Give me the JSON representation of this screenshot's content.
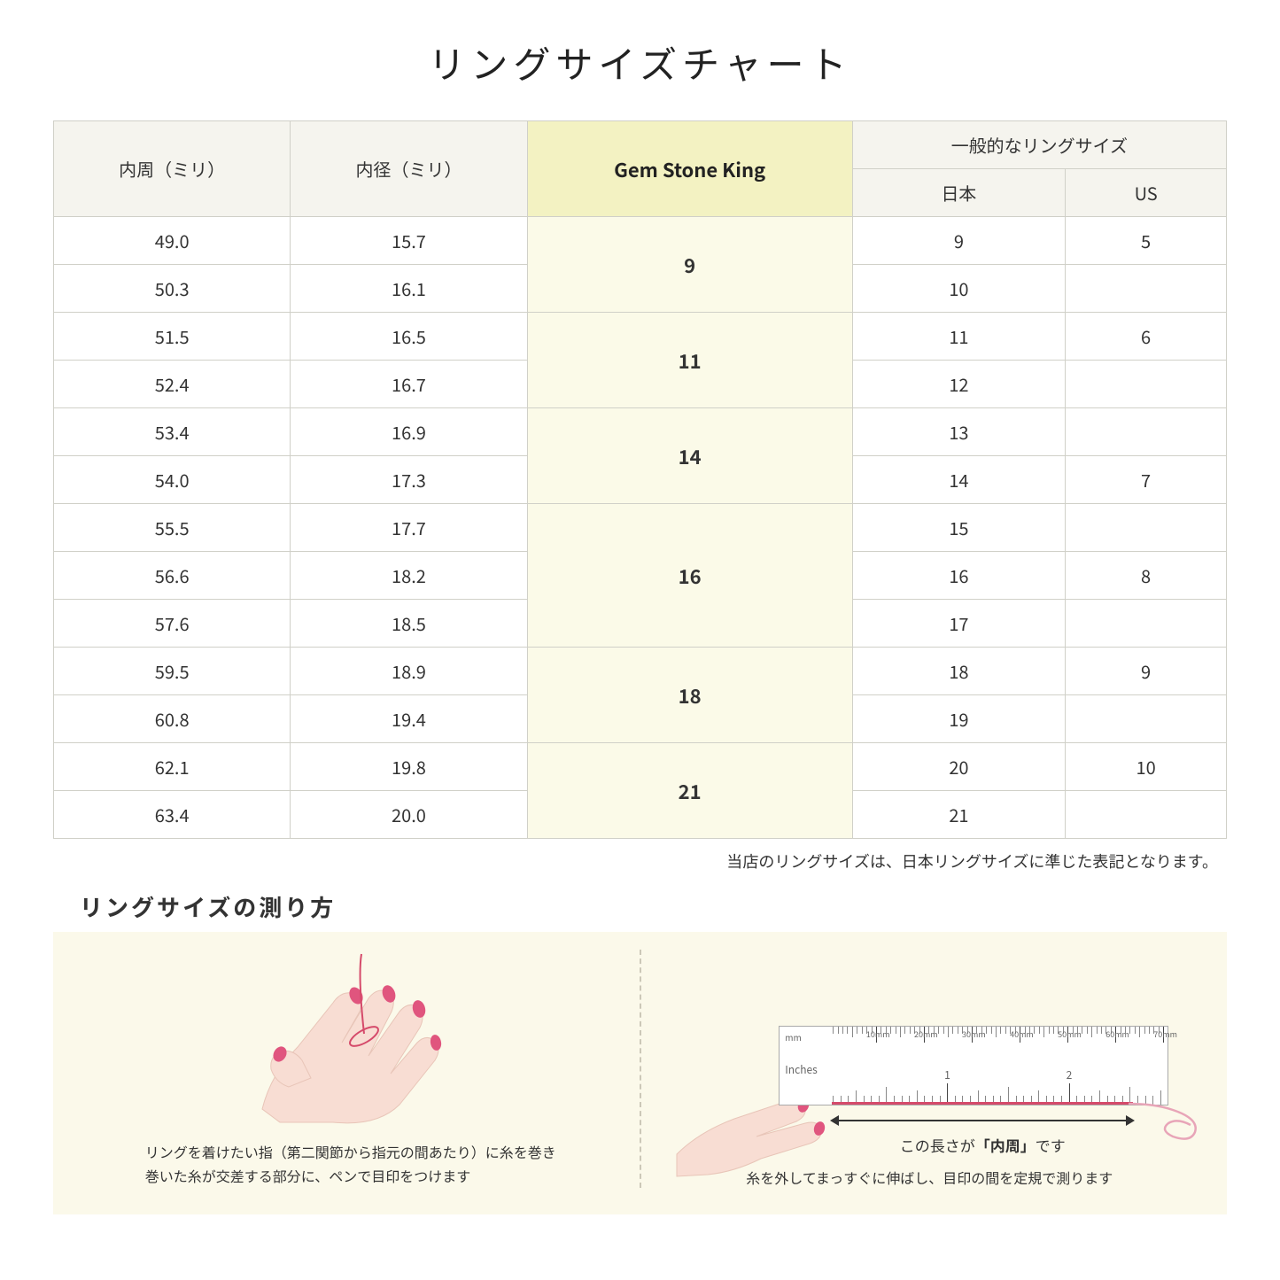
{
  "title": "リングサイズチャート",
  "headers": {
    "circumference": "内周（ミリ）",
    "diameter": "内径（ミリ）",
    "gsk": "Gem Stone King",
    "general": "一般的なリングサイズ",
    "japan": "日本",
    "us": "US"
  },
  "groups": [
    {
      "gsk": "9",
      "rows": [
        {
          "c": "49.0",
          "d": "15.7",
          "jp": "9",
          "us": "5"
        },
        {
          "c": "50.3",
          "d": "16.1",
          "jp": "10",
          "us": ""
        }
      ]
    },
    {
      "gsk": "11",
      "rows": [
        {
          "c": "51.5",
          "d": "16.5",
          "jp": "11",
          "us": "6"
        },
        {
          "c": "52.4",
          "d": "16.7",
          "jp": "12",
          "us": ""
        }
      ]
    },
    {
      "gsk": "14",
      "rows": [
        {
          "c": "53.4",
          "d": "16.9",
          "jp": "13",
          "us": ""
        },
        {
          "c": "54.0",
          "d": "17.3",
          "jp": "14",
          "us": "7"
        }
      ]
    },
    {
      "gsk": "16",
      "rows": [
        {
          "c": "55.5",
          "d": "17.7",
          "jp": "15",
          "us": ""
        },
        {
          "c": "56.6",
          "d": "18.2",
          "jp": "16",
          "us": "8"
        },
        {
          "c": "57.6",
          "d": "18.5",
          "jp": "17",
          "us": ""
        }
      ]
    },
    {
      "gsk": "18",
      "rows": [
        {
          "c": "59.5",
          "d": "18.9",
          "jp": "18",
          "us": "9"
        },
        {
          "c": "60.8",
          "d": "19.4",
          "jp": "19",
          "us": ""
        }
      ]
    },
    {
      "gsk": "21",
      "rows": [
        {
          "c": "62.1",
          "d": "19.8",
          "jp": "20",
          "us": "10"
        },
        {
          "c": "63.4",
          "d": "20.0",
          "jp": "21",
          "us": ""
        }
      ]
    }
  ],
  "note": "当店のリングサイズは、日本リングサイズに準じた表記となります。",
  "howto": {
    "title": "リングサイズの測り方",
    "step1": "リングを着けたい指（第二関節から指元の間あたり）に糸を巻き\n巻いた糸が交差する部分に、ペンで目印をつけます",
    "ruler_mm_label": "mm",
    "ruler_mm_ticks": [
      "10mm",
      "20mm",
      "30mm",
      "40mm",
      "50mm",
      "60mm",
      "70mm"
    ],
    "ruler_in_label": "Inches",
    "ruler_in_majors": [
      "1",
      "2"
    ],
    "measure_label_pre": "この長さが",
    "measure_label_bold": "「内周」",
    "measure_label_post": "です",
    "step2": "糸を外してまっすぐに伸ばし、目印の間を定規で測ります"
  },
  "colors": {
    "header_bg": "#f5f4ee",
    "gsk_header_bg": "#f3f2c2",
    "gsk_cell_bg": "#fbfae8",
    "border": "#d0d0c8",
    "howto_bg": "#fbf9ea",
    "thread": "#d54a6a",
    "skin": "#f8ddd3",
    "nail": "#e0557e"
  }
}
